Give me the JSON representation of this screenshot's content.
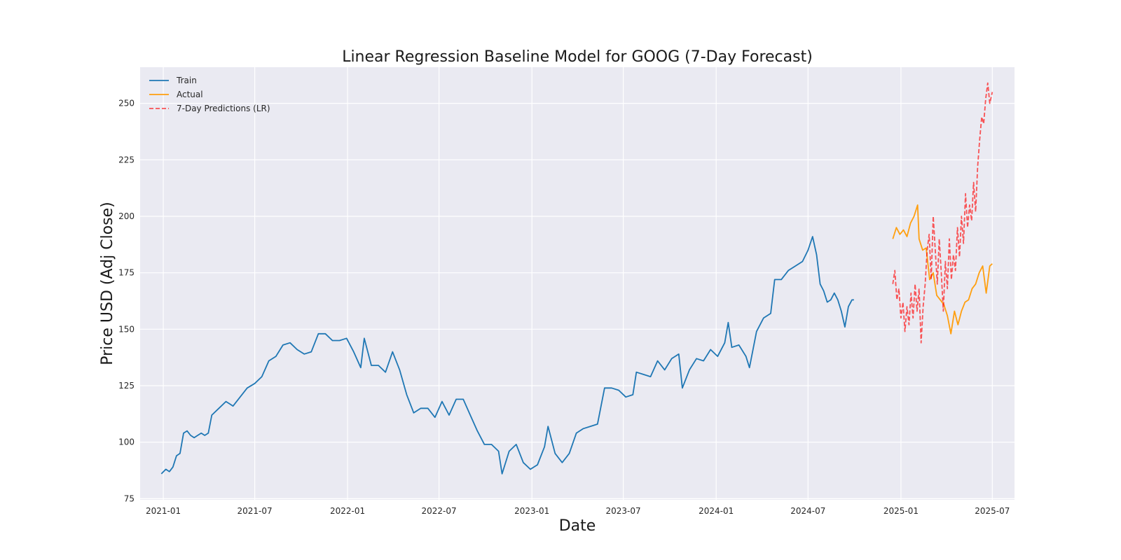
{
  "chart_data": {
    "type": "line",
    "title": "Linear Regression Baseline Model for GOOG (7-Day Forecast)",
    "xlabel": "Date",
    "ylabel": "Price USD (Adj Close)",
    "xlim": [
      "2020-11-16",
      "2025-08-14"
    ],
    "ylim": [
      74.5,
      266
    ],
    "grid": true,
    "legend_position": "top-left",
    "x_ticks": [
      "2021-01",
      "2021-07",
      "2022-01",
      "2022-07",
      "2023-01",
      "2023-07",
      "2024-01",
      "2024-07",
      "2025-01",
      "2025-07"
    ],
    "y_ticks": [
      75,
      100,
      125,
      150,
      175,
      200,
      225,
      250
    ],
    "series": [
      {
        "name": "Train",
        "color": "#1f77b4",
        "style": "solid",
        "points": [
          [
            "2020-12-28",
            86
          ],
          [
            "2021-01-06",
            88
          ],
          [
            "2021-01-13",
            87
          ],
          [
            "2021-01-20",
            89
          ],
          [
            "2021-01-27",
            94
          ],
          [
            "2021-02-03",
            95
          ],
          [
            "2021-02-10",
            104
          ],
          [
            "2021-02-17",
            105
          ],
          [
            "2021-02-24",
            103
          ],
          [
            "2021-03-03",
            102
          ],
          [
            "2021-03-10",
            103
          ],
          [
            "2021-03-17",
            104
          ],
          [
            "2021-03-24",
            103
          ],
          [
            "2021-03-31",
            104
          ],
          [
            "2021-04-07",
            112
          ],
          [
            "2021-04-21",
            115
          ],
          [
            "2021-05-05",
            118
          ],
          [
            "2021-05-12",
            117
          ],
          [
            "2021-05-19",
            116
          ],
          [
            "2021-06-02",
            120
          ],
          [
            "2021-06-16",
            124
          ],
          [
            "2021-07-01",
            126
          ],
          [
            "2021-07-15",
            129
          ],
          [
            "2021-07-29",
            136
          ],
          [
            "2021-08-12",
            138
          ],
          [
            "2021-08-26",
            143
          ],
          [
            "2021-09-09",
            144
          ],
          [
            "2021-09-23",
            141
          ],
          [
            "2021-10-07",
            139
          ],
          [
            "2021-10-21",
            140
          ],
          [
            "2021-11-04",
            148
          ],
          [
            "2021-11-18",
            148
          ],
          [
            "2021-12-02",
            145
          ],
          [
            "2021-12-16",
            145
          ],
          [
            "2021-12-30",
            146
          ],
          [
            "2022-01-13",
            140
          ],
          [
            "2022-01-27",
            133
          ],
          [
            "2022-02-03",
            146
          ],
          [
            "2022-02-17",
            134
          ],
          [
            "2022-03-03",
            134
          ],
          [
            "2022-03-17",
            131
          ],
          [
            "2022-03-31",
            140
          ],
          [
            "2022-04-14",
            132
          ],
          [
            "2022-04-28",
            121
          ],
          [
            "2022-05-12",
            113
          ],
          [
            "2022-05-26",
            115
          ],
          [
            "2022-06-09",
            115
          ],
          [
            "2022-06-23",
            111
          ],
          [
            "2022-07-07",
            118
          ],
          [
            "2022-07-21",
            112
          ],
          [
            "2022-08-04",
            119
          ],
          [
            "2022-08-18",
            119
          ],
          [
            "2022-09-01",
            112
          ],
          [
            "2022-09-15",
            105
          ],
          [
            "2022-09-29",
            99
          ],
          [
            "2022-10-13",
            99
          ],
          [
            "2022-10-27",
            96
          ],
          [
            "2022-11-03",
            86
          ],
          [
            "2022-11-17",
            96
          ],
          [
            "2022-12-01",
            99
          ],
          [
            "2022-12-15",
            91
          ],
          [
            "2022-12-29",
            88
          ],
          [
            "2023-01-12",
            90
          ],
          [
            "2023-01-26",
            98
          ],
          [
            "2023-02-02",
            107
          ],
          [
            "2023-02-16",
            95
          ],
          [
            "2023-03-02",
            91
          ],
          [
            "2023-03-16",
            95
          ],
          [
            "2023-03-30",
            104
          ],
          [
            "2023-04-13",
            106
          ],
          [
            "2023-04-27",
            107
          ],
          [
            "2023-05-11",
            108
          ],
          [
            "2023-05-25",
            124
          ],
          [
            "2023-06-08",
            124
          ],
          [
            "2023-06-22",
            123
          ],
          [
            "2023-07-06",
            120
          ],
          [
            "2023-07-20",
            121
          ],
          [
            "2023-07-27",
            131
          ],
          [
            "2023-08-10",
            130
          ],
          [
            "2023-08-24",
            129
          ],
          [
            "2023-09-07",
            136
          ],
          [
            "2023-09-21",
            132
          ],
          [
            "2023-10-05",
            137
          ],
          [
            "2023-10-19",
            139
          ],
          [
            "2023-10-26",
            124
          ],
          [
            "2023-11-09",
            132
          ],
          [
            "2023-11-23",
            137
          ],
          [
            "2023-12-07",
            136
          ],
          [
            "2023-12-21",
            141
          ],
          [
            "2024-01-04",
            138
          ],
          [
            "2024-01-18",
            144
          ],
          [
            "2024-01-25",
            153
          ],
          [
            "2024-02-01",
            142
          ],
          [
            "2024-02-15",
            143
          ],
          [
            "2024-02-29",
            138
          ],
          [
            "2024-03-07",
            133
          ],
          [
            "2024-03-21",
            149
          ],
          [
            "2024-04-04",
            155
          ],
          [
            "2024-04-18",
            157
          ],
          [
            "2024-04-26",
            172
          ],
          [
            "2024-05-09",
            172
          ],
          [
            "2024-05-23",
            176
          ],
          [
            "2024-06-06",
            178
          ],
          [
            "2024-06-20",
            180
          ],
          [
            "2024-07-01",
            185
          ],
          [
            "2024-07-10",
            191
          ],
          [
            "2024-07-18",
            183
          ],
          [
            "2024-07-25",
            170
          ],
          [
            "2024-08-01",
            167
          ],
          [
            "2024-08-08",
            162
          ],
          [
            "2024-08-15",
            163
          ],
          [
            "2024-08-22",
            166
          ],
          [
            "2024-08-29",
            163
          ],
          [
            "2024-09-05",
            158
          ],
          [
            "2024-09-12",
            151
          ],
          [
            "2024-09-19",
            160
          ],
          [
            "2024-09-26",
            163
          ],
          [
            "2024-09-30",
            163
          ]
        ]
      },
      {
        "name": "Actual",
        "color": "#ff9f0f",
        "style": "solid",
        "points": [
          [
            "2024-12-16",
            190
          ],
          [
            "2024-12-23",
            195
          ],
          [
            "2024-12-30",
            192
          ],
          [
            "2025-01-06",
            194
          ],
          [
            "2025-01-13",
            191
          ],
          [
            "2025-01-20",
            197
          ],
          [
            "2025-01-27",
            200
          ],
          [
            "2025-02-03",
            205
          ],
          [
            "2025-02-06",
            190
          ],
          [
            "2025-02-13",
            185
          ],
          [
            "2025-02-20",
            186
          ],
          [
            "2025-02-27",
            172
          ],
          [
            "2025-03-06",
            175
          ],
          [
            "2025-03-13",
            165
          ],
          [
            "2025-03-20",
            163
          ],
          [
            "2025-03-27",
            161
          ],
          [
            "2025-04-03",
            156
          ],
          [
            "2025-04-10",
            148
          ],
          [
            "2025-04-17",
            158
          ],
          [
            "2025-04-24",
            152
          ],
          [
            "2025-05-01",
            158
          ],
          [
            "2025-05-08",
            162
          ],
          [
            "2025-05-15",
            163
          ],
          [
            "2025-05-22",
            168
          ],
          [
            "2025-05-29",
            170
          ],
          [
            "2025-06-05",
            175
          ],
          [
            "2025-06-12",
            178
          ],
          [
            "2025-06-19",
            166
          ],
          [
            "2025-06-26",
            178
          ],
          [
            "2025-07-01",
            179
          ]
        ]
      },
      {
        "name": "7-Day Predictions (LR)",
        "color": "#ff0000",
        "style": "dashed",
        "points": [
          [
            "2024-12-16",
            170
          ],
          [
            "2024-12-20",
            176
          ],
          [
            "2024-12-24",
            163
          ],
          [
            "2024-12-28",
            168
          ],
          [
            "2025-01-01",
            155
          ],
          [
            "2025-01-05",
            162
          ],
          [
            "2025-01-09",
            149
          ],
          [
            "2025-01-13",
            160
          ],
          [
            "2025-01-17",
            152
          ],
          [
            "2025-01-21",
            166
          ],
          [
            "2025-01-25",
            155
          ],
          [
            "2025-01-29",
            170
          ],
          [
            "2025-02-02",
            158
          ],
          [
            "2025-02-06",
            168
          ],
          [
            "2025-02-10",
            144
          ],
          [
            "2025-02-14",
            160
          ],
          [
            "2025-02-18",
            170
          ],
          [
            "2025-02-22",
            185
          ],
          [
            "2025-02-26",
            192
          ],
          [
            "2025-03-02",
            172
          ],
          [
            "2025-03-06",
            200
          ],
          [
            "2025-03-10",
            185
          ],
          [
            "2025-03-14",
            170
          ],
          [
            "2025-03-18",
            190
          ],
          [
            "2025-03-22",
            175
          ],
          [
            "2025-03-26",
            158
          ],
          [
            "2025-03-30",
            180
          ],
          [
            "2025-04-03",
            168
          ],
          [
            "2025-04-07",
            190
          ],
          [
            "2025-04-11",
            172
          ],
          [
            "2025-04-15",
            183
          ],
          [
            "2025-04-19",
            176
          ],
          [
            "2025-04-23",
            195
          ],
          [
            "2025-04-27",
            182
          ],
          [
            "2025-05-01",
            200
          ],
          [
            "2025-05-05",
            188
          ],
          [
            "2025-05-09",
            210
          ],
          [
            "2025-05-13",
            195
          ],
          [
            "2025-05-17",
            205
          ],
          [
            "2025-05-21",
            198
          ],
          [
            "2025-05-25",
            215
          ],
          [
            "2025-05-29",
            202
          ],
          [
            "2025-06-02",
            222
          ],
          [
            "2025-06-06",
            234
          ],
          [
            "2025-06-10",
            244
          ],
          [
            "2025-06-14",
            241
          ],
          [
            "2025-06-18",
            252
          ],
          [
            "2025-06-22",
            259
          ],
          [
            "2025-06-26",
            250
          ],
          [
            "2025-07-01",
            255
          ]
        ]
      }
    ]
  }
}
